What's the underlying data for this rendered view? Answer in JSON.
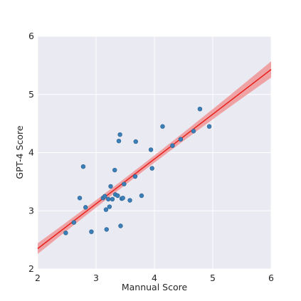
{
  "chart_data": {
    "type": "scatter",
    "xlabel": "Mannual Score",
    "ylabel": "GPT-4 Score",
    "xlim": [
      2,
      6
    ],
    "ylim": [
      2,
      6
    ],
    "x_ticks": [
      "2",
      "3",
      "4",
      "5",
      "6"
    ],
    "y_ticks": [
      "2",
      "3",
      "4",
      "5",
      "6"
    ],
    "grid": true,
    "colors": {
      "background": "#eaeaf2",
      "grid": "#ffffff",
      "points": "#3a7fb8",
      "point_edge": "#2b5f8c",
      "line": "#e8201c",
      "band": "#f08a8a"
    },
    "series": [
      {
        "points": [
          [
            2.48,
            2.62
          ],
          [
            2.62,
            2.8
          ],
          [
            2.72,
            3.22
          ],
          [
            2.78,
            3.76
          ],
          [
            2.82,
            3.06
          ],
          [
            2.92,
            2.64
          ],
          [
            3.12,
            3.22
          ],
          [
            3.15,
            3.25
          ],
          [
            3.17,
            3.02
          ],
          [
            3.18,
            2.68
          ],
          [
            3.21,
            3.2
          ],
          [
            3.23,
            3.07
          ],
          [
            3.25,
            3.42
          ],
          [
            3.28,
            3.2
          ],
          [
            3.32,
            3.7
          ],
          [
            3.33,
            3.28
          ],
          [
            3.37,
            3.26
          ],
          [
            3.39,
            4.2
          ],
          [
            3.41,
            4.31
          ],
          [
            3.42,
            2.74
          ],
          [
            3.44,
            3.21
          ],
          [
            3.46,
            3.22
          ],
          [
            3.48,
            3.46
          ],
          [
            3.58,
            3.18
          ],
          [
            3.67,
            3.59
          ],
          [
            3.68,
            4.19
          ],
          [
            3.78,
            3.26
          ],
          [
            3.94,
            4.05
          ],
          [
            3.96,
            3.73
          ],
          [
            4.14,
            4.45
          ],
          [
            4.31,
            4.12
          ],
          [
            4.45,
            4.23
          ],
          [
            4.67,
            4.37
          ],
          [
            4.78,
            4.75
          ],
          [
            4.94,
            4.45
          ]
        ]
      }
    ],
    "regression": {
      "x": [
        2.0,
        6.0
      ],
      "y": [
        2.35,
        5.43
      ],
      "ci_width_at_ends": 0.14,
      "ci_width_at_center": 0.06,
      "ci_center_x": 3.55
    }
  }
}
